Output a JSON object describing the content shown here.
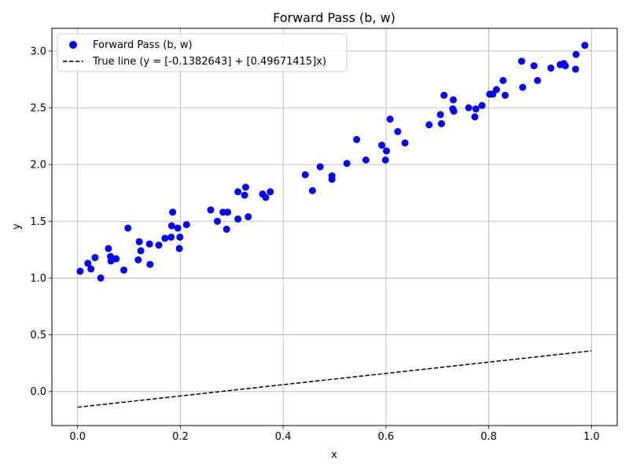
{
  "chart_data": {
    "type": "scatter",
    "title": "Forward Pass (b, w)",
    "xlabel": "x",
    "ylabel": "y",
    "xlim": [
      -0.05,
      1.05
    ],
    "ylim": [
      -0.3,
      3.2
    ],
    "xticks": [
      "0.0",
      "0.2",
      "0.4",
      "0.6",
      "0.8",
      "1.0"
    ],
    "yticks": [
      "0.0",
      "0.5",
      "1.0",
      "1.5",
      "2.0",
      "2.5",
      "3.0"
    ],
    "grid": true,
    "legend_position": "top-left",
    "series": [
      {
        "name": "Forward Pass (b, w)",
        "kind": "scatter",
        "color": "#0000ff",
        "points": [
          [
            0.005,
            1.06
          ],
          [
            0.02,
            1.13
          ],
          [
            0.026,
            1.08
          ],
          [
            0.034,
            1.18
          ],
          [
            0.045,
            1.0
          ],
          [
            0.06,
            1.26
          ],
          [
            0.064,
            1.19
          ],
          [
            0.065,
            1.15
          ],
          [
            0.075,
            1.17
          ],
          [
            0.09,
            1.07
          ],
          [
            0.098,
            1.44
          ],
          [
            0.118,
            1.16
          ],
          [
            0.12,
            1.32
          ],
          [
            0.123,
            1.24
          ],
          [
            0.14,
            1.3
          ],
          [
            0.141,
            1.12
          ],
          [
            0.158,
            1.29
          ],
          [
            0.17,
            1.35
          ],
          [
            0.182,
            1.36
          ],
          [
            0.183,
            1.46
          ],
          [
            0.185,
            1.58
          ],
          [
            0.195,
            1.44
          ],
          [
            0.198,
            1.26
          ],
          [
            0.199,
            1.36
          ],
          [
            0.212,
            1.47
          ],
          [
            0.259,
            1.6
          ],
          [
            0.272,
            1.5
          ],
          [
            0.283,
            1.58
          ],
          [
            0.29,
            1.43
          ],
          [
            0.292,
            1.58
          ],
          [
            0.312,
            1.52
          ],
          [
            0.312,
            1.76
          ],
          [
            0.325,
            1.73
          ],
          [
            0.327,
            1.8
          ],
          [
            0.332,
            1.54
          ],
          [
            0.36,
            1.74
          ],
          [
            0.366,
            1.71
          ],
          [
            0.375,
            1.76
          ],
          [
            0.443,
            1.91
          ],
          [
            0.457,
            1.77
          ],
          [
            0.472,
            1.98
          ],
          [
            0.495,
            1.9
          ],
          [
            0.495,
            1.87
          ],
          [
            0.524,
            2.01
          ],
          [
            0.543,
            2.22
          ],
          [
            0.561,
            2.04
          ],
          [
            0.592,
            2.17
          ],
          [
            0.599,
            2.04
          ],
          [
            0.601,
            2.12
          ],
          [
            0.608,
            2.4
          ],
          [
            0.623,
            2.29
          ],
          [
            0.637,
            2.19
          ],
          [
            0.684,
            2.35
          ],
          [
            0.706,
            2.44
          ],
          [
            0.708,
            2.36
          ],
          [
            0.713,
            2.61
          ],
          [
            0.73,
            2.49
          ],
          [
            0.731,
            2.57
          ],
          [
            0.732,
            2.47
          ],
          [
            0.761,
            2.5
          ],
          [
            0.773,
            2.42
          ],
          [
            0.775,
            2.49
          ],
          [
            0.787,
            2.52
          ],
          [
            0.802,
            2.62
          ],
          [
            0.808,
            2.62
          ],
          [
            0.815,
            2.66
          ],
          [
            0.828,
            2.74
          ],
          [
            0.832,
            2.61
          ],
          [
            0.864,
            2.91
          ],
          [
            0.866,
            2.68
          ],
          [
            0.888,
            2.87
          ],
          [
            0.895,
            2.74
          ],
          [
            0.921,
            2.85
          ],
          [
            0.939,
            2.88
          ],
          [
            0.946,
            2.89
          ],
          [
            0.949,
            2.87
          ],
          [
            0.969,
            2.84
          ],
          [
            0.97,
            2.97
          ],
          [
            0.987,
            3.05
          ]
        ]
      },
      {
        "name": "True line (y = [-0.1382643] + [0.49671415]x)",
        "kind": "line",
        "dash": "dashed",
        "color": "#000000",
        "intercept": -0.1382643,
        "slope": 0.49671415,
        "x_range": [
          0.0,
          1.0
        ]
      }
    ]
  }
}
